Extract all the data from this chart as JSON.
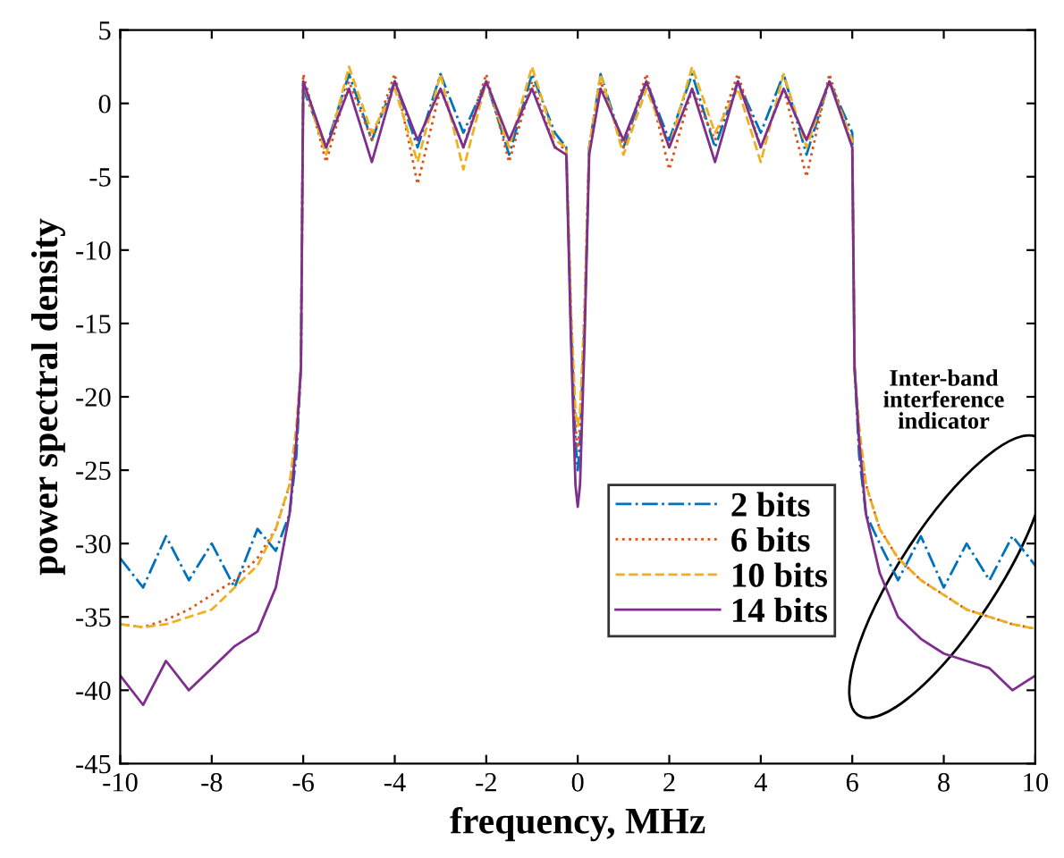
{
  "chart_data": {
    "type": "line",
    "xlabel": "frequency, MHz",
    "ylabel": "power spectral density",
    "x": [
      -10,
      -9.5,
      -9,
      -8.5,
      -8,
      -7.5,
      -7,
      -6.6,
      -6.3,
      -6.15,
      -6.05,
      -6,
      -5.5,
      -5,
      -4.5,
      -4,
      -3.5,
      -3,
      -2.5,
      -2,
      -1.5,
      -1,
      -0.5,
      -0.25,
      -0.15,
      -0.05,
      0,
      0.05,
      0.15,
      0.25,
      0.5,
      1,
      1.5,
      2,
      2.5,
      3,
      3.5,
      4,
      4.5,
      5,
      5.5,
      6,
      6.05,
      6.15,
      6.3,
      6.6,
      7,
      7.5,
      8,
      8.5,
      9,
      9.5,
      10
    ],
    "xlim": [
      -10,
      10
    ],
    "ylim": [
      -45,
      5
    ],
    "xticks": [
      -10,
      -8,
      -6,
      -4,
      -2,
      0,
      2,
      4,
      6,
      8,
      10
    ],
    "yticks": [
      -45,
      -40,
      -35,
      -30,
      -25,
      -20,
      -15,
      -10,
      -5,
      0,
      5
    ],
    "grid": false,
    "legend": "right",
    "marker": "none",
    "series": [
      {
        "name": "2 bits",
        "color": "#0072bd",
        "line_style": "dashdot",
        "values": [
          -31,
          -33,
          -29.5,
          -32.5,
          -30,
          -33,
          -29,
          -30.5,
          -28,
          -24,
          -18,
          1,
          -3,
          2,
          -2.5,
          1.5,
          -3,
          2,
          -2,
          1.5,
          -3.5,
          2,
          -2,
          -3,
          -15,
          -23,
          -25,
          -23,
          -15,
          -3,
          2,
          -3,
          1.5,
          -2.5,
          2,
          -3,
          1.5,
          -2,
          2,
          -3.5,
          1.5,
          -2,
          -18,
          -24,
          -28,
          -30,
          -32.5,
          -29.5,
          -33,
          -30,
          -32.5,
          -29.5,
          -31.5
        ]
      },
      {
        "name": "6 bits",
        "color": "#d95319",
        "line_style": "dotted",
        "values": [
          -35.5,
          -35.7,
          -35.2,
          -34.5,
          -33.5,
          -32.5,
          -31,
          -29,
          -26,
          -23,
          -18,
          2,
          -4,
          1.5,
          -2.5,
          2,
          -5.5,
          1,
          -3,
          2,
          -4,
          1.5,
          -3,
          -3,
          -14,
          -22,
          -23.5,
          -22,
          -14,
          -3,
          1.5,
          -3,
          2,
          -4.5,
          1,
          -2.5,
          2,
          -3,
          1,
          -5,
          2,
          -3,
          -18,
          -23,
          -26,
          -29,
          -31,
          -32.5,
          -33.5,
          -34.5,
          -35,
          -35.5,
          -35.8
        ]
      },
      {
        "name": "10 bits",
        "color": "#edb120",
        "line_style": "dashed",
        "values": [
          -35.5,
          -35.7,
          -35.5,
          -35,
          -34.5,
          -33,
          -31.5,
          -29,
          -26,
          -22,
          -18,
          1.5,
          -3.5,
          2.5,
          -2,
          1,
          -4,
          2,
          -4.5,
          1.5,
          -3,
          2.5,
          -2.5,
          -3,
          -14,
          -21,
          -22,
          -21,
          -14,
          -3,
          2,
          -3.5,
          1,
          -3,
          2.5,
          -2,
          1,
          -4,
          2,
          -3,
          1.5,
          -2.5,
          -18,
          -22,
          -26,
          -29,
          -31,
          -32.5,
          -33.5,
          -34.5,
          -35,
          -35.5,
          -35.8
        ]
      },
      {
        "name": "14 bits",
        "color": "#7e2f8e",
        "line_style": "solid",
        "values": [
          -39,
          -41,
          -38,
          -40,
          -38.5,
          -37,
          -36,
          -33,
          -28,
          -23,
          -18,
          1.5,
          -3,
          1,
          -4,
          1.5,
          -2.5,
          1,
          -3,
          1.5,
          -2.5,
          1,
          -3,
          -3.5,
          -16,
          -26,
          -27.5,
          -26,
          -16,
          -3.5,
          1,
          -2.5,
          1.5,
          -3,
          1,
          -4,
          1.5,
          -3,
          1,
          -2.5,
          1.5,
          -3,
          -18,
          -23,
          -28,
          -32,
          -35,
          -36.5,
          -37.5,
          -38,
          -38.5,
          -40,
          -39
        ]
      }
    ],
    "annotations": [
      "Inter-band\ninterference\nindicator"
    ]
  }
}
